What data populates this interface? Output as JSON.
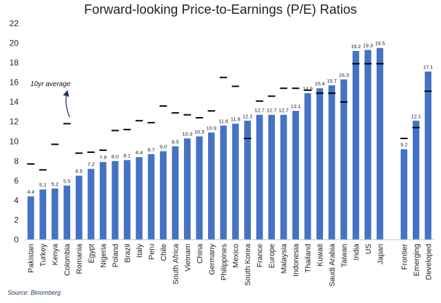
{
  "chart_data": {
    "type": "bar",
    "title": "Forward-looking Price-to-Earnings (P/E) Ratios",
    "xlabel": "",
    "ylabel": "",
    "ylim": [
      0,
      22
    ],
    "yticks": [
      0,
      2,
      4,
      6,
      8,
      10,
      12,
      14,
      16,
      18,
      20,
      22
    ],
    "grid": false,
    "legend": "none",
    "bar_color": "#4472c4",
    "marker_color": "#000000",
    "categories": [
      "Pakistan",
      "Turkey",
      "Kenya",
      "Colombia",
      "Romania",
      "Egypt",
      "Nigeria",
      "Poland",
      "Brazil",
      "Italy",
      "Peru",
      "Chile",
      "South Africa",
      "Vietnam",
      "China",
      "Germany",
      "Philippines",
      "Mexico",
      "South Korea",
      "France",
      "Europe",
      "Malaysia",
      "Indonesia",
      "Thailand",
      "Kuwait",
      "Saudi Arabia",
      "Taiwan",
      "India",
      "US",
      "Japan",
      "",
      "Frontier",
      "Emerging",
      "Developed"
    ],
    "series": [
      {
        "name": "Forward P/E",
        "kind": "bar",
        "values": [
          4.4,
          5.1,
          5.2,
          5.5,
          6.5,
          7.2,
          7.9,
          8.0,
          8.1,
          8.4,
          8.7,
          9.0,
          9.5,
          10.3,
          10.5,
          10.9,
          11.6,
          11.8,
          12.1,
          12.7,
          12.7,
          12.7,
          13.1,
          14.9,
          15.4,
          15.7,
          16.3,
          19.2,
          19.3,
          19.5,
          null,
          9.2,
          12.1,
          17.1
        ],
        "labels": [
          "4.4",
          "5.1",
          "5.2",
          "5.5",
          "6.5",
          "7.2",
          "7.9",
          "8.0",
          "8.1",
          "8.4",
          "8.7",
          "9.0",
          "9.5",
          "10.3",
          "10.5",
          "10.9",
          "11.6",
          "11.8",
          "12.1",
          "12.7",
          "12.7",
          "12.7",
          "13.1",
          "14.9",
          "15.4",
          "15.7",
          "16.3",
          "19.2",
          "19.3",
          "19.5",
          "",
          "9.2",
          "12.1",
          "17.1"
        ]
      },
      {
        "name": "10yr average",
        "kind": "marker",
        "values": [
          7.7,
          7.1,
          9.7,
          11.8,
          8.8,
          8.9,
          9.1,
          11.1,
          11.2,
          12.1,
          11.9,
          13.6,
          12.9,
          12.7,
          12.4,
          13.1,
          16.5,
          15.6,
          10.3,
          14.1,
          14.6,
          15.4,
          15.4,
          15.2,
          14.9,
          14.9,
          14.0,
          17.9,
          17.9,
          17.9,
          null,
          10.3,
          11.4,
          15.1
        ]
      }
    ],
    "annotations": [
      {
        "text": "10yr average",
        "points_to": "Colombia"
      }
    ]
  },
  "source": "Source: Bloomberg"
}
